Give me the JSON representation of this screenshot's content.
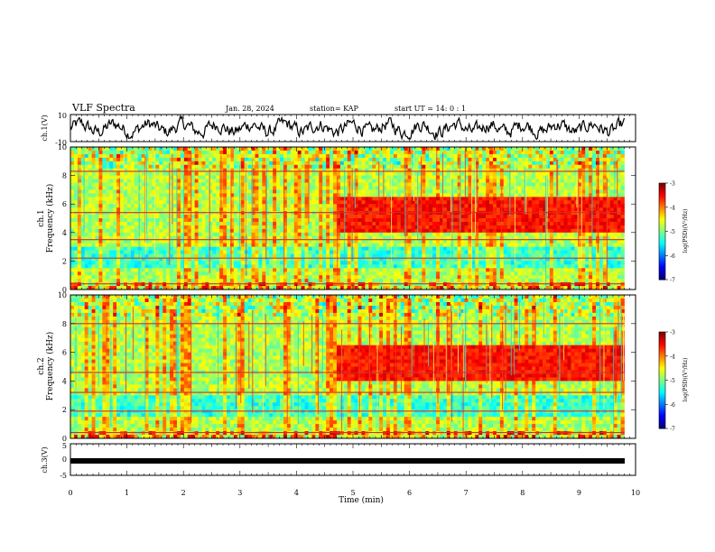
{
  "header": {
    "title": "VLF Spectra",
    "date": "Jan. 28, 2024",
    "station": "station= KAP",
    "start": "start  UT =   14: 0  : 1"
  },
  "chart_data": [
    {
      "type": "line",
      "ylabel": "ch.1(V)",
      "ylim": [
        -10,
        10
      ],
      "yticks": [
        "10",
        "-10"
      ],
      "xlim": [
        0,
        10
      ],
      "trace_color": "#000000"
    },
    {
      "type": "heatmap",
      "ylabel": "ch.1\nFrequency  (kHz)",
      "ylabel_top": "ch.1",
      "ylabel_bottom": "Frequency  (kHz)",
      "ylim": [
        0,
        10
      ],
      "yticks": [
        "0",
        "2",
        "4",
        "6",
        "8",
        "10"
      ],
      "xlim": [
        0,
        10
      ],
      "data_end_min": 9.8,
      "colorbar": {
        "label": "log(PSD)(V²/Hz)",
        "range": [
          -7,
          -3
        ],
        "ticks": [
          "-3",
          "-4",
          "-5",
          "-6",
          "-7"
        ]
      },
      "features": {
        "band_khz": [
          4,
          6
        ],
        "band_start_min": 4.7,
        "background": "green-yellow",
        "lines_khz": [
          0.4,
          2.2,
          3.5,
          5.4,
          8.3
        ]
      }
    },
    {
      "type": "heatmap",
      "ylabel": "ch.2\nFrequency  (kHz)",
      "ylabel_top": "ch.2",
      "ylabel_bottom": "Frequency  (kHz)",
      "ylim": [
        0,
        10
      ],
      "yticks": [
        "0",
        "2",
        "4",
        "6",
        "8",
        "10"
      ],
      "xlim": [
        0,
        10
      ],
      "data_end_min": 9.8,
      "colorbar": {
        "label": "log(PSD)(V²/Hz)",
        "range": [
          -7,
          -3
        ],
        "ticks": [
          "-3",
          "-4",
          "-5",
          "-6",
          "-7"
        ]
      },
      "features": {
        "band_khz": [
          4,
          6
        ],
        "band_start_min": 4.7,
        "background": "green-yellow",
        "lines_khz": [
          0.4,
          1.9,
          3.2,
          4.6,
          8.0
        ]
      }
    },
    {
      "type": "line",
      "ylabel": "ch.3(V)",
      "ylim": [
        -5,
        5
      ],
      "yticks": [
        "5",
        "0",
        "-5"
      ],
      "xlim": [
        0,
        10
      ],
      "trace_level": -0.5,
      "trace_color": "#000000"
    }
  ],
  "xaxis": {
    "label": "Time  (min)",
    "ticks": [
      "0",
      "1",
      "2",
      "3",
      "4",
      "5",
      "6",
      "7",
      "8",
      "9",
      "10"
    ]
  }
}
